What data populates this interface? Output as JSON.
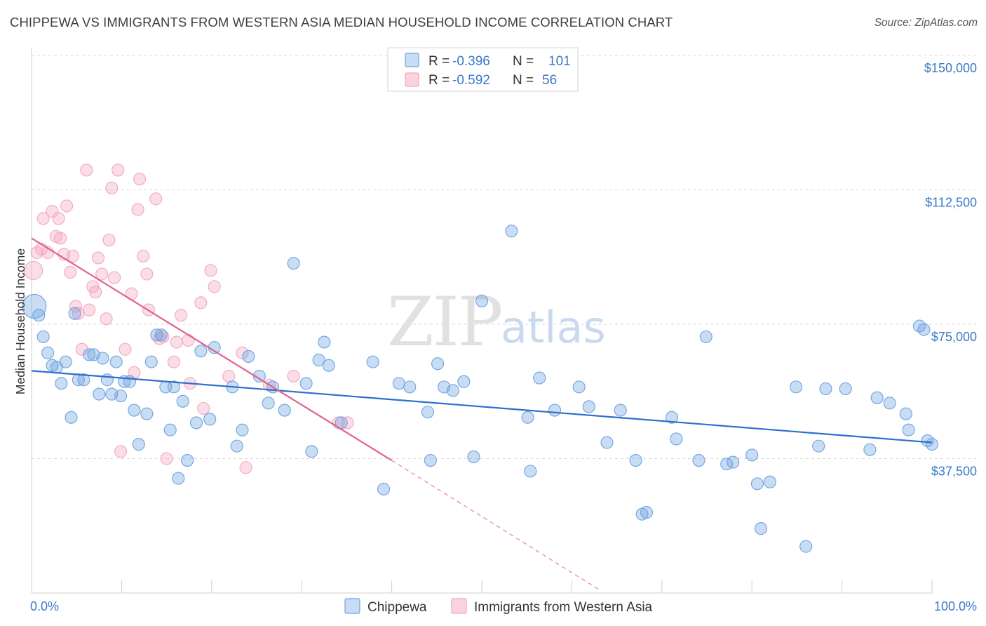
{
  "title": "CHIPPEWA VS IMMIGRANTS FROM WESTERN ASIA MEDIAN HOUSEHOLD INCOME CORRELATION CHART",
  "source": "Source: ZipAtlas.com",
  "watermark": {
    "zip": "ZIP",
    "atlas": "atlas"
  },
  "colors": {
    "blue": "#6fa3e0",
    "blue_line": "#2e6fcc",
    "pink": "#f4a6bf",
    "pink_line": "#e0628f",
    "tick_text": "#3b78c9"
  },
  "legend": {
    "rows": [
      {
        "series": "Chippewa",
        "r_label": "R =",
        "r_value": "-0.396",
        "n_label": "N =",
        "n_value": "101"
      },
      {
        "series": "Immigrants from Western Asia",
        "r_label": "R =",
        "r_value": "-0.592",
        "n_label": "N =",
        "n_value": "56"
      }
    ]
  },
  "chart_data": {
    "type": "scatter",
    "xlabel": "",
    "ylabel": "Median Household Income",
    "xlim": [
      0,
      100
    ],
    "ylim": [
      0,
      150000
    ],
    "x_tick_labels": [
      "0.0%",
      "100.0%"
    ],
    "y_ticks": [
      37500,
      75000,
      112500,
      150000
    ],
    "y_tick_labels": [
      "$37,500",
      "$75,000",
      "$112,500",
      "$150,000"
    ],
    "grid": true,
    "legend_position": "bottom",
    "series": [
      {
        "name": "Chippewa",
        "color": "#6fa3e0",
        "trend": {
          "x0": 0,
          "y0": 62000,
          "x1": 100,
          "y1": 42000,
          "dashed_to": null
        },
        "points": [
          [
            0.3,
            80000,
            3
          ],
          [
            0.8,
            77500,
            1
          ],
          [
            1.3,
            71500,
            1
          ],
          [
            1.8,
            67000,
            1
          ],
          [
            2.3,
            63500,
            1
          ],
          [
            2.8,
            63000,
            1
          ],
          [
            3.3,
            58500,
            1
          ],
          [
            3.8,
            64500,
            1
          ],
          [
            4.4,
            49000,
            1
          ],
          [
            4.8,
            78000,
            1
          ],
          [
            5.2,
            59500,
            1
          ],
          [
            5.8,
            59500,
            1
          ],
          [
            6.4,
            66500,
            1
          ],
          [
            6.9,
            66500,
            1
          ],
          [
            7.5,
            55500,
            1
          ],
          [
            7.9,
            65500,
            1
          ],
          [
            8.4,
            59500,
            1
          ],
          [
            8.9,
            55500,
            1
          ],
          [
            9.4,
            64500,
            1
          ],
          [
            9.9,
            55000,
            1
          ],
          [
            10.3,
            59000,
            1
          ],
          [
            10.9,
            59000,
            1
          ],
          [
            11.4,
            51000,
            1
          ],
          [
            11.9,
            41500,
            1
          ],
          [
            12.8,
            50000,
            1
          ],
          [
            13.3,
            64500,
            1
          ],
          [
            13.9,
            72000,
            1
          ],
          [
            14.4,
            72000,
            1
          ],
          [
            14.9,
            57500,
            1
          ],
          [
            15.4,
            45500,
            1
          ],
          [
            15.8,
            57500,
            1
          ],
          [
            16.3,
            32000,
            1
          ],
          [
            16.8,
            53500,
            1
          ],
          [
            17.3,
            37000,
            1
          ],
          [
            18.3,
            47500,
            1
          ],
          [
            18.8,
            67500,
            1
          ],
          [
            19.8,
            48500,
            1
          ],
          [
            20.3,
            68500,
            1
          ],
          [
            22.3,
            57500,
            1
          ],
          [
            22.8,
            41000,
            1
          ],
          [
            23.4,
            45500,
            1
          ],
          [
            24.1,
            66000,
            1
          ],
          [
            25.3,
            60500,
            1
          ],
          [
            26.3,
            53000,
            1
          ],
          [
            26.8,
            57500,
            1
          ],
          [
            28.1,
            51000,
            1
          ],
          [
            29.1,
            92000,
            1
          ],
          [
            30.5,
            58500,
            1
          ],
          [
            31.1,
            39500,
            1
          ],
          [
            31.9,
            65000,
            1
          ],
          [
            32.5,
            70000,
            1
          ],
          [
            33.0,
            63500,
            1
          ],
          [
            34.4,
            47500,
            1
          ],
          [
            37.9,
            64500,
            1
          ],
          [
            39.1,
            29000,
            1
          ],
          [
            40.8,
            58500,
            1
          ],
          [
            42.0,
            57500,
            1
          ],
          [
            44.0,
            50500,
            1
          ],
          [
            44.3,
            37000,
            1
          ],
          [
            45.1,
            64000,
            1
          ],
          [
            45.8,
            57500,
            1
          ],
          [
            46.8,
            56500,
            1
          ],
          [
            48.0,
            59000,
            1
          ],
          [
            49.1,
            38000,
            1
          ],
          [
            50.0,
            81500,
            1
          ],
          [
            53.3,
            101000,
            1
          ],
          [
            55.1,
            49000,
            1
          ],
          [
            55.4,
            34000,
            1
          ],
          [
            56.4,
            60000,
            1
          ],
          [
            58.1,
            51000,
            1
          ],
          [
            60.8,
            57500,
            1
          ],
          [
            61.9,
            52000,
            1
          ],
          [
            63.9,
            42000,
            1
          ],
          [
            65.4,
            51000,
            1
          ],
          [
            67.1,
            37000,
            1
          ],
          [
            67.8,
            22000,
            1
          ],
          [
            68.3,
            22500,
            1
          ],
          [
            71.1,
            49000,
            1
          ],
          [
            71.6,
            43000,
            1
          ],
          [
            74.1,
            37000,
            1
          ],
          [
            74.9,
            71500,
            1
          ],
          [
            77.2,
            36000,
            1
          ],
          [
            77.9,
            36500,
            1
          ],
          [
            80.0,
            38500,
            1
          ],
          [
            80.6,
            30500,
            1
          ],
          [
            81.0,
            18000,
            1
          ],
          [
            82.0,
            31000,
            1
          ],
          [
            84.9,
            57500,
            1
          ],
          [
            86.0,
            13000,
            1
          ],
          [
            87.4,
            41000,
            1
          ],
          [
            88.2,
            57000,
            1
          ],
          [
            90.4,
            57000,
            1
          ],
          [
            93.1,
            40000,
            1
          ],
          [
            93.9,
            54500,
            1
          ],
          [
            95.3,
            53000,
            1
          ],
          [
            97.1,
            50000,
            1
          ],
          [
            97.4,
            45500,
            1
          ],
          [
            98.6,
            74500,
            1
          ],
          [
            99.1,
            73500,
            1
          ],
          [
            99.5,
            42500,
            1
          ],
          [
            100.0,
            41500,
            1
          ]
        ]
      },
      {
        "name": "Immigrants from Western Asia",
        "color": "#f4a6bf",
        "trend": {
          "x0": 0,
          "y0": 99000,
          "x1": 40,
          "y1": 37000,
          "dashed_to": [
            63,
            1000
          ]
        },
        "points": [
          [
            0.2,
            90000,
            2
          ],
          [
            0.6,
            95000,
            1
          ],
          [
            1.1,
            96000,
            1
          ],
          [
            1.3,
            104500,
            1
          ],
          [
            1.8,
            95000,
            1
          ],
          [
            2.3,
            106500,
            1
          ],
          [
            2.7,
            99500,
            1
          ],
          [
            3.0,
            104500,
            1
          ],
          [
            3.2,
            99000,
            1
          ],
          [
            3.6,
            94500,
            1
          ],
          [
            3.9,
            108000,
            1
          ],
          [
            4.3,
            89500,
            1
          ],
          [
            4.6,
            94000,
            1
          ],
          [
            4.9,
            80000,
            1
          ],
          [
            5.2,
            78000,
            1
          ],
          [
            5.6,
            68000,
            1
          ],
          [
            6.1,
            118000,
            1
          ],
          [
            6.4,
            79000,
            1
          ],
          [
            6.8,
            85500,
            1
          ],
          [
            7.1,
            84000,
            1
          ],
          [
            7.4,
            93500,
            1
          ],
          [
            7.8,
            89000,
            1
          ],
          [
            8.3,
            76500,
            1
          ],
          [
            8.6,
            98500,
            1
          ],
          [
            8.9,
            113000,
            1
          ],
          [
            9.2,
            88000,
            1
          ],
          [
            9.6,
            118000,
            1
          ],
          [
            9.9,
            39500,
            1
          ],
          [
            10.4,
            68000,
            1
          ],
          [
            11.1,
            83500,
            1
          ],
          [
            11.4,
            61500,
            1
          ],
          [
            11.8,
            107000,
            1
          ],
          [
            12.0,
            115500,
            1
          ],
          [
            12.4,
            94000,
            1
          ],
          [
            12.8,
            89000,
            1
          ],
          [
            13.0,
            79000,
            1
          ],
          [
            13.8,
            110000,
            1
          ],
          [
            14.2,
            71000,
            1
          ],
          [
            14.6,
            71500,
            1
          ],
          [
            15.0,
            37500,
            1
          ],
          [
            15.8,
            64500,
            1
          ],
          [
            16.1,
            70000,
            1
          ],
          [
            16.6,
            77500,
            1
          ],
          [
            17.4,
            70500,
            1
          ],
          [
            17.6,
            58500,
            1
          ],
          [
            18.8,
            81000,
            1
          ],
          [
            19.1,
            51500,
            1
          ],
          [
            19.9,
            90000,
            1
          ],
          [
            20.3,
            85500,
            1
          ],
          [
            21.9,
            60500,
            1
          ],
          [
            23.4,
            67000,
            1
          ],
          [
            23.8,
            35000,
            1
          ],
          [
            26.4,
            58000,
            1
          ],
          [
            29.1,
            60500,
            1
          ],
          [
            34.1,
            47500,
            1
          ],
          [
            35.1,
            47500,
            1
          ]
        ]
      }
    ]
  }
}
